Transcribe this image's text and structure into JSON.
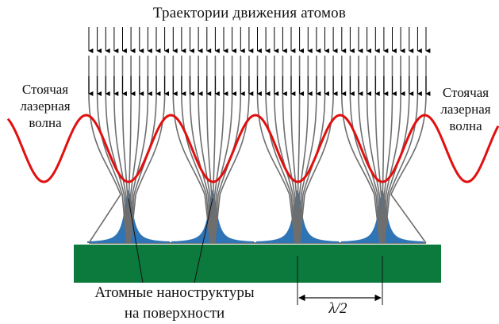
{
  "title": "Траектории движения атомов",
  "left_label": [
    "Стоячая",
    "лазерная",
    "волна"
  ],
  "right_label": [
    "Стоячая",
    "лазерная",
    "волна"
  ],
  "bottom_label": [
    "Атомные наноструктуры",
    "на поверхности"
  ],
  "period_label": "λ/2",
  "colors": {
    "wave": "#e01010",
    "substrate": "#0b7a3c",
    "nanostructure": "#2f74b5",
    "trajectory": "#6e6e6e",
    "arrow": "#000000"
  },
  "icons": [
    "down-arrow-icon"
  ]
}
